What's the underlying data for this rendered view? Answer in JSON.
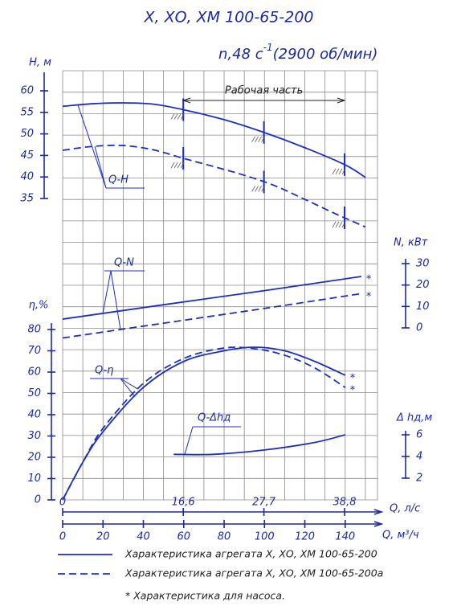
{
  "chart_data": {
    "type": "pump-characteristic",
    "title": "Х, ХО, ХМ 100-65-200",
    "subtitle_parts": [
      "n,48 с",
      "-1",
      "(2900 об/мин)"
    ],
    "color": "#1c2fc0",
    "grid": true,
    "x_axis": {
      "label": "Q, м³/ч",
      "xlim": [
        0,
        156
      ],
      "xticks": [
        0,
        20,
        40,
        60,
        80,
        100,
        120,
        140
      ]
    },
    "x2_axis": {
      "label": "Q, л/с",
      "xlim": [
        0,
        43.33
      ],
      "xticks": [
        0,
        {
          "value": 16.6,
          "label": "16,6"
        },
        {
          "value": 27.7,
          "label": "27,7"
        },
        {
          "value": 38.8,
          "label": "38,8"
        }
      ]
    },
    "axes": {
      "h": {
        "label": "H, м",
        "ylim": [
          35,
          60
        ],
        "yticks": [
          35,
          40,
          45,
          50,
          55,
          60
        ]
      },
      "n": {
        "label": "N, кВт",
        "ylim": [
          0,
          30
        ],
        "yticks": [
          0,
          10,
          20,
          30
        ]
      },
      "eta": {
        "label": "η,%",
        "ylim": [
          0,
          80
        ],
        "yticks": [
          0,
          10,
          20,
          30,
          40,
          50,
          60,
          70,
          80
        ]
      },
      "dh": {
        "label": "Δ hд,м",
        "ylim": [
          2,
          6
        ],
        "yticks": [
          2,
          4,
          6
        ]
      }
    },
    "working_range_label": "Рабочая часть",
    "pump_marker": "*",
    "curves": [
      {
        "label": "Q-H",
        "axis": "h",
        "series": [
          {
            "style": "solid",
            "x": [
              0,
              15,
              30,
              45,
              60,
              80,
              100,
              120,
              140,
              150
            ],
            "values": [
              56.4,
              57.0,
              57.2,
              56.9,
              55.6,
              53.3,
              50.3,
              46.8,
              42.8,
              39.9
            ]
          },
          {
            "style": "dashed",
            "x": [
              0,
              15,
              30,
              45,
              60,
              75,
              90,
              105,
              120,
              135,
              150
            ],
            "values": [
              46.2,
              47.1,
              47.3,
              46.3,
              44.3,
              42.4,
              40.4,
              38.0,
              34.8,
              31.5,
              28.4
            ]
          }
        ]
      },
      {
        "label": "Q-N",
        "axis": "n",
        "series": [
          {
            "style": "solid",
            "x": [
              0,
              50,
              100,
              148
            ],
            "values": [
              4.1,
              10.8,
              17.4,
              24.0
            ],
            "pump_end": true
          },
          {
            "style": "dashed",
            "x": [
              0,
              50,
              100,
              148
            ],
            "values": [
              -4.7,
              2.2,
              9.1,
              16.0
            ],
            "pump_end": true
          }
        ]
      },
      {
        "label": "Q-η",
        "axis": "eta",
        "series": [
          {
            "style": "solid",
            "x": [
              0,
              10,
              20,
              40,
              60,
              80,
              95,
              110,
              125,
              140
            ],
            "values": [
              0,
              17.7,
              32.0,
              52.8,
              65.0,
              70.0,
              71.7,
              70.0,
              65.0,
              58.5
            ],
            "pump_end": true
          },
          {
            "style": "dashed",
            "x": [
              0,
              10,
              20,
              40,
              60,
              80,
              95,
              110,
              125,
              140
            ],
            "values": [
              0,
              17.7,
              33.6,
              54.7,
              66.4,
              71.3,
              71.0,
              67.9,
              61.9,
              52.8
            ],
            "pump_end": true
          }
        ]
      },
      {
        "label": "Q-Δhд",
        "axis": "dh",
        "series": [
          {
            "style": "solid",
            "x": [
              55,
              75,
              100,
              125,
              140
            ],
            "values": [
              4.2,
              4.2,
              4.6,
              5.3,
              6.0
            ]
          }
        ]
      }
    ],
    "legend": [
      {
        "style": "solid",
        "label": "Характеристика агрегата Х, ХО, ХМ 100-65-200"
      },
      {
        "style": "dashed",
        "label": "Характеристика агрегата Х, ХО, ХМ 100-65-200а"
      }
    ],
    "footnote": "* Характеристика для насоса."
  }
}
